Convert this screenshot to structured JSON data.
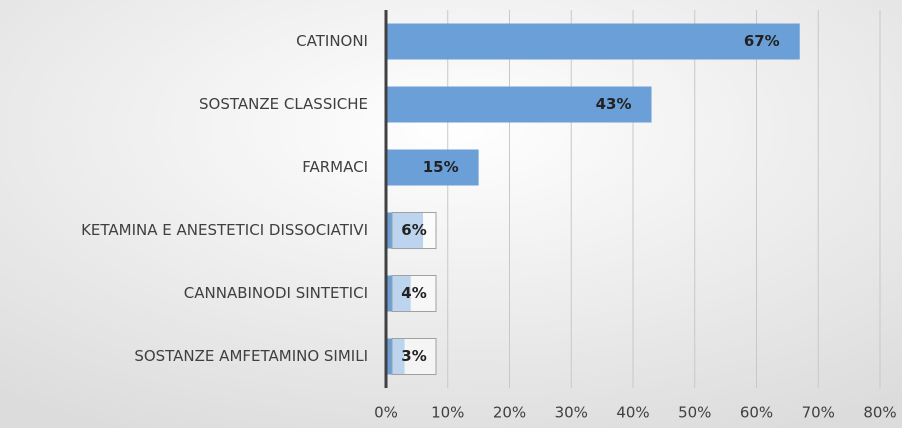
{
  "chart_data": {
    "type": "hbar",
    "categories": [
      "CATINONI",
      "SOSTANZE CLASSICHE",
      "FARMACI",
      "KETAMINA E ANESTETICI DISSOCIATIVI",
      "CANNABINODI SINTETICI",
      "SOSTANZE AMFETAMINO SIMILI"
    ],
    "values": [
      67,
      43,
      15,
      6,
      4,
      3
    ],
    "value_labels": [
      "67%",
      "43%",
      "15%",
      "6%",
      "4%",
      "3%"
    ],
    "color": "#6a9fd8",
    "xlim": [
      0,
      80
    ],
    "xticks": [
      {
        "value": 0,
        "label": "0%"
      },
      {
        "value": 10,
        "label": "10%"
      },
      {
        "value": 20,
        "label": "20%"
      },
      {
        "value": 30,
        "label": "30%"
      },
      {
        "value": 40,
        "label": "40%"
      },
      {
        "value": 50,
        "label": "50%"
      },
      {
        "value": 60,
        "label": "60%"
      },
      {
        "value": 70,
        "label": "70%"
      },
      {
        "value": 80,
        "label": "80%"
      }
    ],
    "grid": true
  }
}
